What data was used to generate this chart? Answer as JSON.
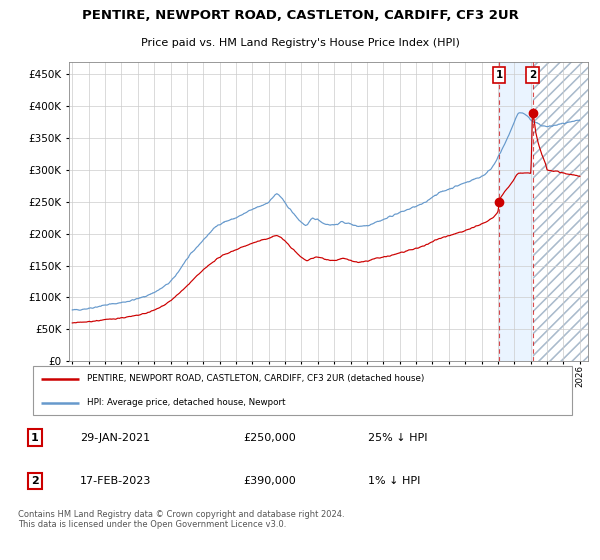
{
  "title": "PENTIRE, NEWPORT ROAD, CASTLETON, CARDIFF, CF3 2UR",
  "subtitle": "Price paid vs. HM Land Registry's House Price Index (HPI)",
  "legend_line1": "PENTIRE, NEWPORT ROAD, CASTLETON, CARDIFF, CF3 2UR (detached house)",
  "legend_line2": "HPI: Average price, detached house, Newport",
  "footer": "Contains HM Land Registry data © Crown copyright and database right 2024.\nThis data is licensed under the Open Government Licence v3.0.",
  "transaction1_date": "29-JAN-2021",
  "transaction1_price": "£250,000",
  "transaction1_hpi": "25% ↓ HPI",
  "transaction2_date": "17-FEB-2023",
  "transaction2_price": "£390,000",
  "transaction2_hpi": "1% ↓ HPI",
  "red_color": "#cc0000",
  "blue_color": "#6699cc",
  "background_color": "#ffffff",
  "grid_color": "#cccccc",
  "ylim": [
    0,
    470000
  ],
  "yticks": [
    0,
    50000,
    100000,
    150000,
    200000,
    250000,
    300000,
    350000,
    400000,
    450000
  ],
  "xlim_start": 1995.0,
  "xlim_end": 2026.5,
  "transaction1_x": 2021.08,
  "transaction1_y": 250000,
  "transaction2_x": 2023.12,
  "transaction2_y": 390000,
  "hpi_keypoints": [
    [
      1995.0,
      80000
    ],
    [
      1996.0,
      83000
    ],
    [
      1997.0,
      88000
    ],
    [
      1998.0,
      92000
    ],
    [
      1999.0,
      98000
    ],
    [
      2000.0,
      108000
    ],
    [
      2001.0,
      125000
    ],
    [
      2002.0,
      160000
    ],
    [
      2003.0,
      190000
    ],
    [
      2004.0,
      215000
    ],
    [
      2005.0,
      225000
    ],
    [
      2006.0,
      238000
    ],
    [
      2007.0,
      250000
    ],
    [
      2007.5,
      262000
    ],
    [
      2008.0,
      248000
    ],
    [
      2008.5,
      232000
    ],
    [
      2009.0,
      218000
    ],
    [
      2009.3,
      213000
    ],
    [
      2009.7,
      224000
    ],
    [
      2010.0,
      222000
    ],
    [
      2010.5,
      215000
    ],
    [
      2011.0,
      214000
    ],
    [
      2011.5,
      218000
    ],
    [
      2012.0,
      215000
    ],
    [
      2012.5,
      212000
    ],
    [
      2013.0,
      213000
    ],
    [
      2013.5,
      218000
    ],
    [
      2014.0,
      222000
    ],
    [
      2014.5,
      228000
    ],
    [
      2015.0,
      233000
    ],
    [
      2015.5,
      238000
    ],
    [
      2016.0,
      243000
    ],
    [
      2016.5,
      248000
    ],
    [
      2017.0,
      258000
    ],
    [
      2017.5,
      265000
    ],
    [
      2018.0,
      270000
    ],
    [
      2018.5,
      275000
    ],
    [
      2019.0,
      280000
    ],
    [
      2019.5,
      285000
    ],
    [
      2020.0,
      290000
    ],
    [
      2020.5,
      300000
    ],
    [
      2021.0,
      320000
    ],
    [
      2021.5,
      345000
    ],
    [
      2022.0,
      375000
    ],
    [
      2022.3,
      390000
    ],
    [
      2022.6,
      388000
    ],
    [
      2022.9,
      382000
    ],
    [
      2023.0,
      378000
    ],
    [
      2023.5,
      372000
    ],
    [
      2024.0,
      368000
    ],
    [
      2024.5,
      370000
    ],
    [
      2025.0,
      373000
    ],
    [
      2025.5,
      375000
    ],
    [
      2026.0,
      378000
    ]
  ],
  "prop_keypoints": [
    [
      1995.0,
      60000
    ],
    [
      1996.0,
      62000
    ],
    [
      1997.0,
      65000
    ],
    [
      1998.0,
      68000
    ],
    [
      1999.0,
      72000
    ],
    [
      2000.0,
      80000
    ],
    [
      2001.0,
      95000
    ],
    [
      2002.0,
      118000
    ],
    [
      2003.0,
      143000
    ],
    [
      2004.0,
      163000
    ],
    [
      2005.0,
      175000
    ],
    [
      2006.0,
      185000
    ],
    [
      2007.0,
      193000
    ],
    [
      2007.5,
      197000
    ],
    [
      2008.0,
      188000
    ],
    [
      2008.5,
      175000
    ],
    [
      2009.0,
      163000
    ],
    [
      2009.3,
      158000
    ],
    [
      2009.7,
      162000
    ],
    [
      2010.0,
      163000
    ],
    [
      2010.5,
      160000
    ],
    [
      2011.0,
      158000
    ],
    [
      2011.5,
      161000
    ],
    [
      2012.0,
      158000
    ],
    [
      2012.5,
      155000
    ],
    [
      2013.0,
      157000
    ],
    [
      2013.5,
      161000
    ],
    [
      2014.0,
      163000
    ],
    [
      2014.5,
      166000
    ],
    [
      2015.0,
      170000
    ],
    [
      2015.5,
      173000
    ],
    [
      2016.0,
      177000
    ],
    [
      2016.5,
      181000
    ],
    [
      2017.0,
      188000
    ],
    [
      2017.5,
      193000
    ],
    [
      2018.0,
      197000
    ],
    [
      2018.5,
      201000
    ],
    [
      2019.0,
      205000
    ],
    [
      2019.5,
      210000
    ],
    [
      2020.0,
      215000
    ],
    [
      2020.5,
      222000
    ],
    [
      2021.0,
      235000
    ],
    [
      2021.08,
      250000
    ],
    [
      2021.3,
      262000
    ],
    [
      2021.8,
      278000
    ],
    [
      2022.3,
      295000
    ],
    [
      2022.8,
      295000
    ],
    [
      2023.0,
      295000
    ],
    [
      2023.12,
      390000
    ],
    [
      2023.3,
      360000
    ],
    [
      2023.6,
      330000
    ],
    [
      2023.9,
      310000
    ],
    [
      2024.0,
      300000
    ],
    [
      2024.5,
      298000
    ],
    [
      2025.0,
      295000
    ],
    [
      2025.5,
      293000
    ],
    [
      2026.0,
      290000
    ]
  ]
}
